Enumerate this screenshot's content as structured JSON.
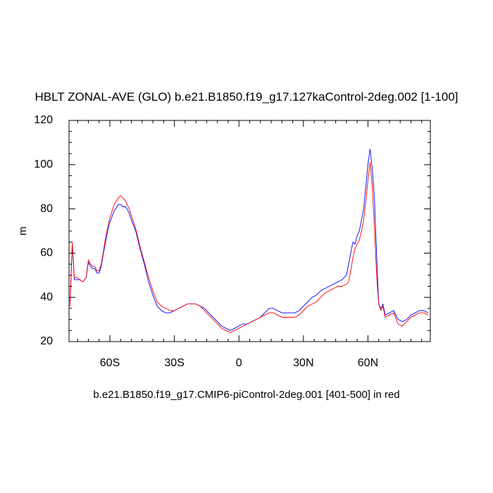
{
  "chart_data": {
    "type": "line",
    "title": "HBLT ZONAL-AVE (GLO) b.e21.B1850.f19_g17.127kaControl-2deg.002 [1-100]",
    "caption": "b.e21.B1850.f19_g17.CMIP6-piControl-2deg.001 [401-500] in red",
    "ylabel": "m",
    "xlabel": "",
    "xlim": [
      -79,
      89
    ],
    "ylim": [
      20,
      120
    ],
    "x_ticks": [
      {
        "value": -60,
        "label": "60S"
      },
      {
        "value": -30,
        "label": "30S"
      },
      {
        "value": 0,
        "label": "0"
      },
      {
        "value": 30,
        "label": "30N"
      },
      {
        "value": 60,
        "label": "60N"
      }
    ],
    "y_ticks": [
      {
        "value": 20,
        "label": "20"
      },
      {
        "value": 40,
        "label": "40"
      },
      {
        "value": 60,
        "label": "60"
      },
      {
        "value": 80,
        "label": "80"
      },
      {
        "value": 100,
        "label": "100"
      },
      {
        "value": 120,
        "label": "120"
      }
    ],
    "grid": false,
    "series": [
      {
        "color": "#0000ff",
        "x": [
          -78.5,
          -77.5,
          -76.5,
          -75.5,
          -74,
          -72.5,
          -71,
          -70,
          -69,
          -68,
          -67,
          -66,
          -65,
          -64,
          -63,
          -62,
          -61,
          -60,
          -58,
          -56,
          -55,
          -54,
          -53,
          -52,
          -51,
          -50,
          -48,
          -46,
          -44,
          -42,
          -40,
          -38,
          -36,
          -34,
          -32,
          -30,
          -28,
          -26,
          -24,
          -22,
          -20,
          -18,
          -16,
          -14,
          -12,
          -10,
          -8,
          -6,
          -4,
          -2,
          0,
          2,
          4,
          6,
          8,
          10,
          12,
          14,
          16,
          18,
          20,
          22,
          24,
          26,
          28,
          30,
          32,
          34,
          36,
          38,
          40,
          42,
          44,
          46,
          48,
          50,
          51,
          52,
          53,
          54,
          55,
          56,
          57,
          58,
          59,
          60,
          61,
          62,
          63,
          64,
          65,
          66,
          67,
          68,
          70,
          72,
          74,
          76,
          78,
          80,
          82,
          84,
          86,
          88
        ],
        "y": [
          38,
          64,
          48,
          48,
          48,
          47,
          49,
          56,
          54,
          53,
          53,
          51,
          51,
          54,
          60,
          65,
          70,
          74,
          79,
          82,
          82,
          81,
          81,
          80,
          78,
          75,
          70,
          62,
          55,
          47,
          41,
          36,
          34,
          33,
          33,
          34,
          35,
          36,
          37,
          37,
          37,
          36,
          35,
          33,
          31,
          29,
          27,
          26,
          25,
          26,
          27,
          28,
          28,
          29,
          30,
          31,
          33,
          35,
          35,
          34,
          33,
          33,
          33,
          33,
          34,
          36,
          38,
          40,
          41,
          43,
          44,
          45,
          46,
          47,
          48,
          50,
          55,
          60,
          65,
          64,
          68,
          70,
          75,
          80,
          90,
          100,
          107,
          98,
          85,
          60,
          37,
          35,
          37,
          32,
          33,
          34,
          30,
          29,
          30,
          32,
          33,
          34,
          34,
          33
        ]
      },
      {
        "color": "#ff0000",
        "x": [
          -78.5,
          -77.5,
          -76.5,
          -75.5,
          -74,
          -72.5,
          -71,
          -70,
          -69,
          -68,
          -67,
          -66,
          -65,
          -64,
          -63,
          -62,
          -61,
          -60,
          -58,
          -56,
          -55,
          -54,
          -53,
          -52,
          -51,
          -50,
          -48,
          -46,
          -44,
          -42,
          -40,
          -38,
          -36,
          -34,
          -32,
          -30,
          -28,
          -26,
          -24,
          -22,
          -20,
          -18,
          -16,
          -14,
          -12,
          -10,
          -8,
          -6,
          -4,
          -2,
          0,
          2,
          4,
          6,
          8,
          10,
          12,
          14,
          16,
          18,
          20,
          22,
          24,
          26,
          28,
          30,
          32,
          34,
          36,
          38,
          40,
          42,
          44,
          46,
          48,
          50,
          51,
          52,
          53,
          54,
          55,
          56,
          57,
          58,
          59,
          60,
          61,
          62,
          63,
          64,
          65,
          66,
          67,
          68,
          70,
          72,
          74,
          76,
          78,
          80,
          82,
          84,
          86,
          88
        ],
        "y": [
          36,
          65,
          49,
          49,
          48,
          47,
          49,
          57,
          55,
          54,
          54,
          52,
          52,
          55,
          61,
          67,
          72,
          76,
          82,
          85,
          86,
          85,
          84,
          82,
          80,
          77,
          71,
          63,
          56,
          49,
          43,
          38,
          36,
          35,
          34,
          34,
          35,
          36,
          37,
          37,
          37,
          36,
          34,
          32,
          30,
          28,
          26,
          25,
          24,
          25,
          26,
          27,
          28,
          29,
          30,
          31,
          32,
          33,
          33,
          32,
          31,
          31,
          31,
          31,
          32,
          34,
          36,
          37,
          38,
          40,
          42,
          43,
          44,
          45,
          45,
          46,
          47,
          52,
          58,
          62,
          64,
          66,
          70,
          75,
          83,
          93,
          101,
          90,
          72,
          50,
          37,
          34,
          36,
          31,
          32,
          33,
          28,
          27,
          29,
          31,
          32,
          33,
          33,
          32
        ]
      }
    ]
  }
}
